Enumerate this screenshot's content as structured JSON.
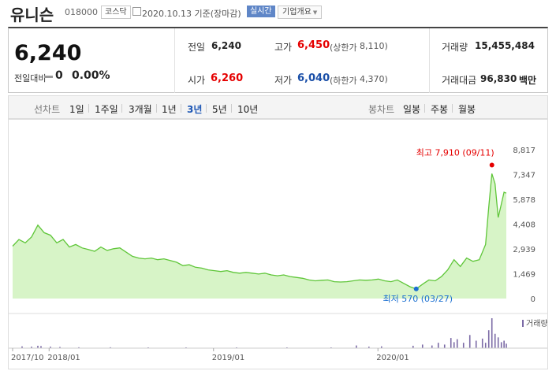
{
  "stock": {
    "name": "유니슨",
    "code": "018000",
    "market": "코스닥",
    "date": "2020.10.13 기준(장마감)",
    "realtime": "실시간",
    "company_info": "기업개요"
  },
  "summary": {
    "price": "6,240",
    "change_label": "전일대비",
    "change_value": "0",
    "change_pct": "0.00%",
    "prev_label": "전일",
    "prev": "6,240",
    "high_label": "고가",
    "high": "6,450",
    "upper_label": "(상한가",
    "upper": "8,110)",
    "volume_label": "거래량",
    "volume": "15,455,484",
    "open_label": "시가",
    "open": "6,260",
    "low_label": "저가",
    "low": "6,040",
    "lower_label": "(하한가",
    "lower": "4,370)",
    "amount_label": "거래대금",
    "amount": "96,830",
    "amount_unit": "백만"
  },
  "toolbar": {
    "line_label": "선차트",
    "periods": [
      "1일",
      "1주일",
      "3개월",
      "1년",
      "3년",
      "5년",
      "10년"
    ],
    "active_period": "3년",
    "candle_label": "봉차트",
    "candles": [
      "일봉",
      "주봉",
      "월봉"
    ]
  },
  "colors": {
    "line": "#5fc639",
    "fill": "#c9f0b4",
    "high": "#e50000",
    "low": "#1a6fd1",
    "volume": "#7b6aa6",
    "accent": "#1e57b5"
  },
  "chart_data": {
    "type": "area",
    "title": "",
    "x_ticks": [
      "2017/10",
      "2018/01",
      "2019/01",
      "2020/01"
    ],
    "y_ticks": [
      0,
      1469,
      2939,
      4408,
      5878,
      7347,
      8817
    ],
    "ylim": [
      0,
      8817
    ],
    "xlim": [
      "2017-10-13",
      "2020-10-13"
    ],
    "series": [
      {
        "values": [
          [
            "2017-10-13",
            3100
          ],
          [
            "2017-10-27",
            3500
          ],
          [
            "2017-11-10",
            3300
          ],
          [
            "2017-11-24",
            3650
          ],
          [
            "2017-12-08",
            4350
          ],
          [
            "2017-12-22",
            3900
          ],
          [
            "2018-01-05",
            3750
          ],
          [
            "2018-01-19",
            3300
          ],
          [
            "2018-02-02",
            3500
          ],
          [
            "2018-02-16",
            3050
          ],
          [
            "2018-03-02",
            3200
          ],
          [
            "2018-03-16",
            3000
          ],
          [
            "2018-03-30",
            2900
          ],
          [
            "2018-04-13",
            2800
          ],
          [
            "2018-04-27",
            3050
          ],
          [
            "2018-05-11",
            2850
          ],
          [
            "2018-05-25",
            2950
          ],
          [
            "2018-06-08",
            3000
          ],
          [
            "2018-06-22",
            2750
          ],
          [
            "2018-07-06",
            2500
          ],
          [
            "2018-07-20",
            2400
          ],
          [
            "2018-08-03",
            2350
          ],
          [
            "2018-08-17",
            2400
          ],
          [
            "2018-08-31",
            2300
          ],
          [
            "2018-09-14",
            2350
          ],
          [
            "2018-09-28",
            2250
          ],
          [
            "2018-10-12",
            2150
          ],
          [
            "2018-10-26",
            1950
          ],
          [
            "2018-11-09",
            2000
          ],
          [
            "2018-11-23",
            1850
          ],
          [
            "2018-12-07",
            1800
          ],
          [
            "2018-12-21",
            1700
          ],
          [
            "2019-01-04",
            1650
          ],
          [
            "2019-01-18",
            1600
          ],
          [
            "2019-02-01",
            1650
          ],
          [
            "2019-02-15",
            1550
          ],
          [
            "2019-03-01",
            1500
          ],
          [
            "2019-03-15",
            1550
          ],
          [
            "2019-03-29",
            1500
          ],
          [
            "2019-04-12",
            1450
          ],
          [
            "2019-04-26",
            1500
          ],
          [
            "2019-05-10",
            1400
          ],
          [
            "2019-05-24",
            1350
          ],
          [
            "2019-06-07",
            1400
          ],
          [
            "2019-06-21",
            1300
          ],
          [
            "2019-07-05",
            1250
          ],
          [
            "2019-07-19",
            1200
          ],
          [
            "2019-08-02",
            1100
          ],
          [
            "2019-08-16",
            1050
          ],
          [
            "2019-08-30",
            1080
          ],
          [
            "2019-09-13",
            1100
          ],
          [
            "2019-09-27",
            1000
          ],
          [
            "2019-10-11",
            980
          ],
          [
            "2019-10-25",
            1000
          ],
          [
            "2019-11-08",
            1050
          ],
          [
            "2019-11-22",
            1100
          ],
          [
            "2019-12-06",
            1080
          ],
          [
            "2019-12-20",
            1100
          ],
          [
            "2020-01-03",
            1150
          ],
          [
            "2020-01-17",
            1050
          ],
          [
            "2020-01-31",
            1000
          ],
          [
            "2020-02-14",
            1100
          ],
          [
            "2020-02-28",
            900
          ],
          [
            "2020-03-13",
            700
          ],
          [
            "2020-03-27",
            570
          ],
          [
            "2020-04-10",
            850
          ],
          [
            "2020-04-24",
            1100
          ],
          [
            "2020-05-08",
            1050
          ],
          [
            "2020-05-22",
            1300
          ],
          [
            "2020-06-05",
            1700
          ],
          [
            "2020-06-19",
            2300
          ],
          [
            "2020-07-03",
            1900
          ],
          [
            "2020-07-17",
            2400
          ],
          [
            "2020-07-31",
            2200
          ],
          [
            "2020-08-14",
            2300
          ],
          [
            "2020-08-28",
            3200
          ],
          [
            "2020-09-04",
            5400
          ],
          [
            "2020-09-11",
            7400
          ],
          [
            "2020-09-18",
            6800
          ],
          [
            "2020-09-25",
            4800
          ],
          [
            "2020-10-02",
            5600
          ],
          [
            "2020-10-08",
            6300
          ],
          [
            "2020-10-13",
            6240
          ]
        ]
      }
    ],
    "volume_label": "거래량",
    "volume_bars": [
      [
        "2017-11-03",
        0.06
      ],
      [
        "2017-11-24",
        0.05
      ],
      [
        "2017-12-08",
        0.08
      ],
      [
        "2017-12-15",
        0.07
      ],
      [
        "2018-01-05",
        0.05
      ],
      [
        "2018-01-26",
        0.04
      ],
      [
        "2018-03-09",
        0.03
      ],
      [
        "2018-05-18",
        0.03
      ],
      [
        "2018-08-10",
        0.02
      ],
      [
        "2018-11-02",
        0.02
      ],
      [
        "2019-02-22",
        0.02
      ],
      [
        "2019-06-14",
        0.02
      ],
      [
        "2019-09-20",
        0.02
      ],
      [
        "2019-11-15",
        0.09
      ],
      [
        "2019-12-13",
        0.05
      ],
      [
        "2020-01-10",
        0.06
      ],
      [
        "2020-03-20",
        0.08
      ],
      [
        "2020-04-10",
        0.12
      ],
      [
        "2020-05-01",
        0.09
      ],
      [
        "2020-05-15",
        0.18
      ],
      [
        "2020-05-29",
        0.12
      ],
      [
        "2020-06-12",
        0.34
      ],
      [
        "2020-06-19",
        0.2
      ],
      [
        "2020-06-26",
        0.3
      ],
      [
        "2020-07-10",
        0.18
      ],
      [
        "2020-07-24",
        0.44
      ],
      [
        "2020-08-07",
        0.25
      ],
      [
        "2020-08-21",
        0.32
      ],
      [
        "2020-08-28",
        0.18
      ],
      [
        "2020-09-04",
        0.6
      ],
      [
        "2020-09-11",
        1.0
      ],
      [
        "2020-09-18",
        0.48
      ],
      [
        "2020-09-25",
        0.36
      ],
      [
        "2020-10-02",
        0.2
      ],
      [
        "2020-10-08",
        0.25
      ],
      [
        "2020-10-13",
        0.15
      ]
    ],
    "annotations": {
      "high": {
        "label": "최고 7,910 (09/11)",
        "date": "2020-09-11",
        "value": 7910
      },
      "low": {
        "label": "최저 570 (03/27)",
        "date": "2020-03-27",
        "value": 570
      }
    },
    "grid": false
  }
}
